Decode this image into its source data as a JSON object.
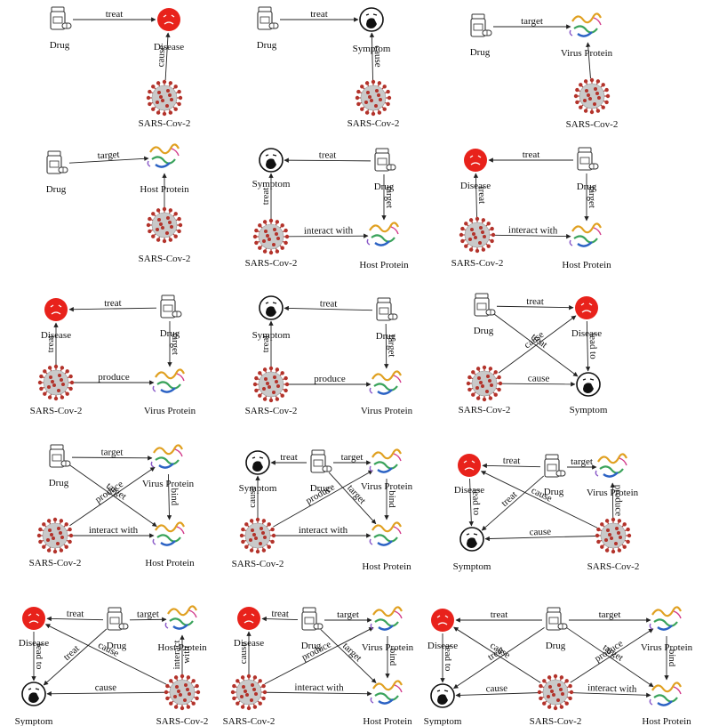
{
  "labels": {
    "drug": "Drug",
    "disease": "Disease",
    "symptom": "Symptom",
    "virus": "SARS-Cov-2",
    "virus_protein": "Virus Protein",
    "host_protein": "Host Protein"
  },
  "relations": {
    "treat": "treat",
    "cause": "cause",
    "target": "target",
    "interact_with": "interact with",
    "produce": "produce",
    "lead_to": "lead to",
    "bind": "bind",
    "interact_with_vertical": "interact\nwith"
  },
  "colors": {
    "disease_red": "#e8221b",
    "virus_red": "#b3332b",
    "virus_grey": "#c9c9c9",
    "line": "#222222"
  },
  "icons": {
    "drug": "pill-bottle-icon",
    "disease": "sick-face-icon",
    "symptom": "coughing-face-icon",
    "virus": "coronavirus-icon",
    "protein": "protein-ribbon-icon"
  },
  "diagrams": [
    {
      "id": "d1",
      "nodes": {
        "drug": "drug",
        "disease": "disease",
        "virus": "virus"
      },
      "edges": [
        {
          "from": "drug",
          "to": "disease",
          "label": "treat"
        },
        {
          "from": "virus",
          "to": "disease",
          "label": "cause"
        }
      ]
    },
    {
      "id": "d2",
      "nodes": {
        "drug": "drug",
        "symptom": "symptom",
        "virus": "virus"
      },
      "edges": [
        {
          "from": "drug",
          "to": "symptom",
          "label": "treat"
        },
        {
          "from": "virus",
          "to": "symptom",
          "label": "cause"
        }
      ]
    },
    {
      "id": "d3",
      "nodes": {
        "drug": "drug",
        "vp": "virus_protein",
        "virus": "virus"
      },
      "edges": [
        {
          "from": "drug",
          "to": "vp",
          "label": "target"
        },
        {
          "from": "virus",
          "to": "vp",
          "label": ""
        }
      ]
    },
    {
      "id": "d4",
      "nodes": {
        "drug": "drug",
        "hp": "host_protein",
        "virus": "virus"
      },
      "edges": [
        {
          "from": "drug",
          "to": "hp",
          "label": "target"
        },
        {
          "from": "virus",
          "to": "hp",
          "label": ""
        }
      ]
    },
    {
      "id": "d5",
      "nodes": {
        "symptom": "symptom",
        "drug": "drug",
        "virus": "virus",
        "hp": "host_protein"
      },
      "edges": [
        {
          "from": "drug",
          "to": "symptom",
          "label": "treat"
        },
        {
          "from": "drug",
          "to": "hp",
          "label": "target"
        },
        {
          "from": "virus",
          "to": "symptom",
          "label": "treat"
        },
        {
          "from": "virus",
          "to": "hp",
          "label": "interact_with"
        }
      ]
    },
    {
      "id": "d6",
      "nodes": {
        "disease": "disease",
        "drug": "drug",
        "virus": "virus",
        "hp": "host_protein"
      },
      "edges": [
        {
          "from": "drug",
          "to": "disease",
          "label": "treat"
        },
        {
          "from": "drug",
          "to": "hp",
          "label": "target"
        },
        {
          "from": "virus",
          "to": "disease",
          "label": "treat"
        },
        {
          "from": "virus",
          "to": "hp",
          "label": "interact_with"
        }
      ]
    },
    {
      "id": "d7",
      "nodes": {
        "disease": "disease",
        "drug": "drug",
        "virus": "virus",
        "vp": "virus_protein"
      },
      "edges": [
        {
          "from": "drug",
          "to": "disease",
          "label": "treat"
        },
        {
          "from": "drug",
          "to": "vp",
          "label": "target"
        },
        {
          "from": "virus",
          "to": "disease",
          "label": "treat"
        },
        {
          "from": "virus",
          "to": "vp",
          "label": "produce"
        }
      ]
    },
    {
      "id": "d8",
      "nodes": {
        "symptom": "symptom",
        "drug": "drug",
        "virus": "virus",
        "vp": "virus_protein"
      },
      "edges": [
        {
          "from": "drug",
          "to": "symptom",
          "label": "treat"
        },
        {
          "from": "drug",
          "to": "vp",
          "label": "target"
        },
        {
          "from": "virus",
          "to": "symptom",
          "label": "treat"
        },
        {
          "from": "virus",
          "to": "vp",
          "label": "produce"
        }
      ]
    },
    {
      "id": "d9",
      "nodes": {
        "drug": "drug",
        "disease": "disease",
        "virus": "virus",
        "symptom": "symptom"
      },
      "edges": [
        {
          "from": "drug",
          "to": "disease",
          "label": "treat"
        },
        {
          "from": "drug",
          "to": "symptom",
          "label": "treat"
        },
        {
          "from": "virus",
          "to": "disease",
          "label": "cause"
        },
        {
          "from": "virus",
          "to": "symptom",
          "label": "cause"
        },
        {
          "from": "disease",
          "to": "symptom",
          "label": "lead_to"
        }
      ]
    },
    {
      "id": "d10",
      "nodes": {
        "drug": "drug",
        "vp": "virus_protein",
        "virus": "virus",
        "hp": "host_protein"
      },
      "edges": [
        {
          "from": "drug",
          "to": "vp",
          "label": "target"
        },
        {
          "from": "drug",
          "to": "hp",
          "label": "target"
        },
        {
          "from": "virus",
          "to": "vp",
          "label": "produce"
        },
        {
          "from": "virus",
          "to": "hp",
          "label": "interact_with"
        },
        {
          "from": "vp",
          "to": "hp",
          "label": "bind"
        }
      ]
    },
    {
      "id": "d11",
      "nodes": {
        "symptom": "symptom",
        "drug": "drug",
        "vp": "virus_protein",
        "virus": "virus",
        "hp": "host_protein"
      },
      "edges": [
        {
          "from": "drug",
          "to": "symptom",
          "label": "treat"
        },
        {
          "from": "drug",
          "to": "vp",
          "label": "target"
        },
        {
          "from": "drug",
          "to": "hp",
          "label": "target"
        },
        {
          "from": "virus",
          "to": "symptom",
          "label": "cause"
        },
        {
          "from": "virus",
          "to": "vp",
          "label": "produce"
        },
        {
          "from": "virus",
          "to": "hp",
          "label": "interact_with"
        },
        {
          "from": "vp",
          "to": "hp",
          "label": "bind"
        }
      ]
    },
    {
      "id": "d12",
      "nodes": {
        "disease": "disease",
        "drug": "drug",
        "vp": "virus_protein",
        "symptom": "symptom",
        "virus": "virus"
      },
      "edges": [
        {
          "from": "drug",
          "to": "disease",
          "label": "treat"
        },
        {
          "from": "drug",
          "to": "symptom",
          "label": "treat"
        },
        {
          "from": "drug",
          "to": "vp",
          "label": "target"
        },
        {
          "from": "disease",
          "to": "symptom",
          "label": "lead_to"
        },
        {
          "from": "virus",
          "to": "disease",
          "label": "cause"
        },
        {
          "from": "virus",
          "to": "symptom",
          "label": "cause"
        },
        {
          "from": "virus",
          "to": "vp",
          "label": "produce"
        }
      ]
    },
    {
      "id": "d13",
      "nodes": {
        "disease": "disease",
        "drug": "drug",
        "hp": "host_protein",
        "symptom": "symptom",
        "virus": "virus"
      },
      "edges": [
        {
          "from": "drug",
          "to": "disease",
          "label": "treat"
        },
        {
          "from": "drug",
          "to": "symptom",
          "label": "treat"
        },
        {
          "from": "drug",
          "to": "hp",
          "label": "target"
        },
        {
          "from": "disease",
          "to": "symptom",
          "label": "lead_to"
        },
        {
          "from": "virus",
          "to": "disease",
          "label": "cause"
        },
        {
          "from": "virus",
          "to": "symptom",
          "label": "cause"
        },
        {
          "from": "virus",
          "to": "hp",
          "label": "interact_with_vertical"
        }
      ]
    },
    {
      "id": "d14",
      "nodes": {
        "disease": "disease",
        "drug": "drug",
        "vp": "virus_protein",
        "virus": "virus",
        "hp": "host_protein"
      },
      "edges": [
        {
          "from": "drug",
          "to": "disease",
          "label": "treat"
        },
        {
          "from": "drug",
          "to": "vp",
          "label": "target"
        },
        {
          "from": "drug",
          "to": "hp",
          "label": "target"
        },
        {
          "from": "virus",
          "to": "disease",
          "label": "cause"
        },
        {
          "from": "virus",
          "to": "vp",
          "label": "produce"
        },
        {
          "from": "virus",
          "to": "hp",
          "label": "interact_with"
        },
        {
          "from": "vp",
          "to": "hp",
          "label": "bind"
        }
      ]
    },
    {
      "id": "d15",
      "nodes": {
        "disease": "disease",
        "drug": "drug",
        "vp": "virus_protein",
        "symptom": "symptom",
        "virus": "virus",
        "hp": "host_protein"
      },
      "edges": [
        {
          "from": "drug",
          "to": "disease",
          "label": "treat"
        },
        {
          "from": "drug",
          "to": "symptom",
          "label": "treat"
        },
        {
          "from": "drug",
          "to": "vp",
          "label": "target"
        },
        {
          "from": "drug",
          "to": "hp",
          "label": "target"
        },
        {
          "from": "disease",
          "to": "symptom",
          "label": "lead_to"
        },
        {
          "from": "virus",
          "to": "disease",
          "label": "cause"
        },
        {
          "from": "virus",
          "to": "symptom",
          "label": "cause"
        },
        {
          "from": "virus",
          "to": "vp",
          "label": "produce"
        },
        {
          "from": "virus",
          "to": "hp",
          "label": "interact_with"
        },
        {
          "from": "vp",
          "to": "hp",
          "label": "bind"
        }
      ]
    }
  ]
}
